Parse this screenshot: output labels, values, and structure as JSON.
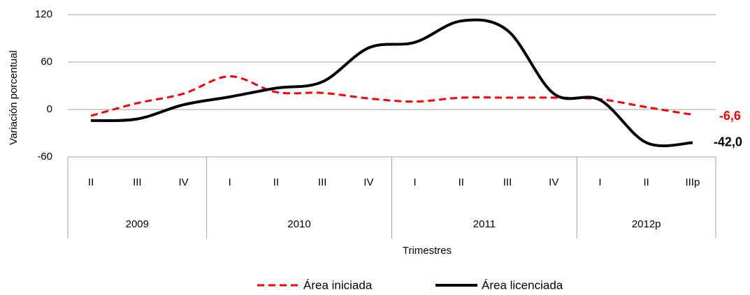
{
  "chart_data": {
    "type": "line",
    "y_label": "Variación porcentual",
    "x_label": "Trimestres",
    "categories": [
      "II",
      "III",
      "IV",
      "I",
      "II",
      "III",
      "IV",
      "I",
      "II",
      "III",
      "IV",
      "I",
      "II",
      "IIIp"
    ],
    "groups": [
      {
        "label": "2009",
        "count": 3
      },
      {
        "label": "2010",
        "count": 4
      },
      {
        "label": "2011",
        "count": 4
      },
      {
        "label": "2012p",
        "count": 3
      }
    ],
    "series": [
      {
        "name": "Área iniciada",
        "color": "#ff0000",
        "dashed": true,
        "values": [
          -8,
          8,
          20,
          42,
          22,
          21,
          14,
          10,
          15,
          15,
          15,
          13,
          3,
          -6.6
        ],
        "value_labels": [
          null,
          null,
          null,
          null,
          null,
          null,
          null,
          null,
          null,
          null,
          null,
          null,
          null,
          "-6,6"
        ]
      },
      {
        "name": "Área licenciada",
        "color": "#000000",
        "dashed": false,
        "values": [
          -14,
          -12,
          6,
          16,
          27,
          35,
          78,
          85,
          112,
          100,
          20,
          12,
          -42,
          -42.0
        ],
        "value_labels": [
          null,
          null,
          null,
          null,
          null,
          null,
          null,
          null,
          null,
          null,
          null,
          null,
          null,
          "-42,0"
        ]
      }
    ],
    "ylim": [
      -60,
      120
    ],
    "yticks": [
      -60,
      0,
      60,
      120
    ],
    "grid": true,
    "smooth": true,
    "legend": "bottom"
  }
}
